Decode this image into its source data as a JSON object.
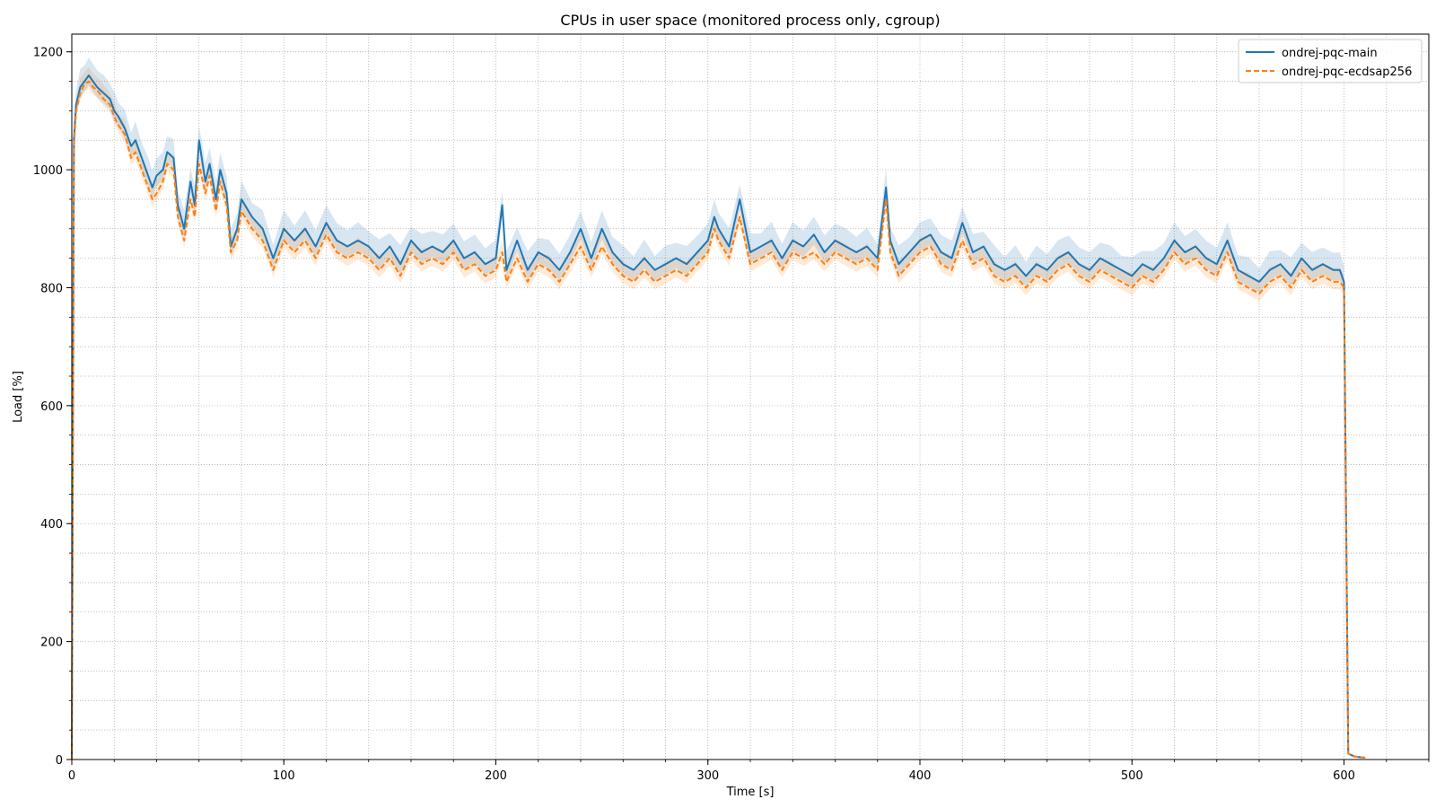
{
  "chart_data": {
    "type": "line",
    "title": "CPUs in user space (monitored process only, cgroup)",
    "xlabel": "Time [s]",
    "ylabel": "Load [%]",
    "xlim": [
      0,
      640
    ],
    "ylim": [
      0,
      1230
    ],
    "x_ticks": [
      0,
      100,
      200,
      300,
      400,
      500,
      600
    ],
    "y_ticks": [
      0,
      200,
      400,
      600,
      800,
      1000,
      1200
    ],
    "x_tick_labels": [
      "0",
      "100",
      "200",
      "300",
      "400",
      "500",
      "600"
    ],
    "y_tick_labels": [
      "0",
      "200",
      "400",
      "600",
      "800",
      "1000",
      "1200"
    ],
    "grid": true,
    "minor_grid": true,
    "legend_position": "top-right",
    "series": [
      {
        "name": "ondrej-pqc-main",
        "color": "#1f77b4",
        "style": "solid",
        "x": [
          0,
          1,
          2,
          4,
          6,
          8,
          10,
          12,
          15,
          18,
          20,
          22,
          25,
          28,
          30,
          33,
          36,
          38,
          40,
          43,
          45,
          48,
          50,
          53,
          56,
          58,
          60,
          63,
          65,
          68,
          70,
          73,
          75,
          78,
          80,
          85,
          90,
          95,
          100,
          105,
          110,
          115,
          120,
          125,
          130,
          135,
          140,
          145,
          150,
          155,
          160,
          165,
          170,
          175,
          180,
          185,
          190,
          195,
          200,
          203,
          205,
          210,
          215,
          220,
          225,
          230,
          235,
          240,
          245,
          250,
          255,
          260,
          265,
          270,
          275,
          280,
          285,
          290,
          295,
          300,
          303,
          305,
          310,
          315,
          320,
          325,
          330,
          335,
          340,
          345,
          350,
          355,
          360,
          365,
          370,
          375,
          380,
          384,
          386,
          390,
          395,
          400,
          405,
          410,
          415,
          420,
          425,
          430,
          435,
          440,
          445,
          450,
          455,
          460,
          465,
          470,
          475,
          480,
          485,
          490,
          495,
          500,
          505,
          510,
          515,
          520,
          525,
          530,
          535,
          540,
          545,
          550,
          555,
          560,
          565,
          570,
          575,
          580,
          585,
          590,
          595,
          598,
          600,
          602,
          605,
          610
        ],
        "values": [
          0,
          1050,
          1110,
          1140,
          1150,
          1160,
          1150,
          1140,
          1130,
          1120,
          1100,
          1090,
          1070,
          1040,
          1050,
          1020,
          990,
          970,
          990,
          1000,
          1030,
          1020,
          940,
          900,
          980,
          940,
          1050,
          980,
          1010,
          950,
          1000,
          960,
          870,
          900,
          950,
          920,
          900,
          850,
          900,
          880,
          900,
          870,
          910,
          880,
          870,
          880,
          870,
          850,
          870,
          840,
          880,
          860,
          870,
          860,
          880,
          850,
          860,
          840,
          850,
          940,
          830,
          880,
          830,
          860,
          850,
          830,
          860,
          900,
          850,
          900,
          860,
          840,
          830,
          850,
          830,
          840,
          850,
          840,
          860,
          880,
          920,
          900,
          870,
          950,
          860,
          870,
          880,
          850,
          880,
          870,
          890,
          860,
          880,
          870,
          860,
          870,
          850,
          970,
          880,
          840,
          860,
          880,
          890,
          860,
          850,
          910,
          860,
          870,
          840,
          830,
          840,
          820,
          840,
          830,
          850,
          860,
          840,
          830,
          850,
          840,
          830,
          820,
          840,
          830,
          850,
          880,
          860,
          870,
          850,
          840,
          880,
          830,
          820,
          810,
          830,
          840,
          820,
          850,
          830,
          840,
          830,
          830,
          810,
          10,
          5,
          3
        ]
      },
      {
        "name": "ondrej-pqc-ecdsap256",
        "color": "#ff7f0e",
        "style": "dashed",
        "x": [
          0,
          1,
          2,
          4,
          6,
          8,
          10,
          12,
          15,
          18,
          20,
          22,
          25,
          28,
          30,
          33,
          36,
          38,
          40,
          43,
          45,
          48,
          50,
          53,
          56,
          58,
          60,
          63,
          65,
          68,
          70,
          73,
          75,
          78,
          80,
          85,
          90,
          95,
          100,
          105,
          110,
          115,
          120,
          125,
          130,
          135,
          140,
          145,
          150,
          155,
          160,
          165,
          170,
          175,
          180,
          185,
          190,
          195,
          200,
          203,
          205,
          210,
          215,
          220,
          225,
          230,
          235,
          240,
          245,
          250,
          255,
          260,
          265,
          270,
          275,
          280,
          285,
          290,
          295,
          300,
          303,
          305,
          310,
          315,
          320,
          325,
          330,
          335,
          340,
          345,
          350,
          355,
          360,
          365,
          370,
          375,
          380,
          384,
          386,
          390,
          395,
          400,
          405,
          410,
          415,
          420,
          425,
          430,
          435,
          440,
          445,
          450,
          455,
          460,
          465,
          470,
          475,
          480,
          485,
          490,
          495,
          500,
          505,
          510,
          515,
          520,
          525,
          530,
          535,
          540,
          545,
          550,
          555,
          560,
          565,
          570,
          575,
          580,
          585,
          590,
          595,
          598,
          600,
          602,
          605,
          610
        ],
        "values": [
          0,
          1040,
          1100,
          1130,
          1145,
          1150,
          1140,
          1135,
          1120,
          1110,
          1090,
          1075,
          1060,
          1020,
          1030,
          1000,
          970,
          950,
          960,
          980,
          1010,
          1000,
          920,
          880,
          950,
          920,
          1010,
          960,
          990,
          930,
          980,
          940,
          860,
          880,
          930,
          900,
          880,
          830,
          880,
          860,
          880,
          850,
          890,
          860,
          850,
          860,
          850,
          830,
          850,
          820,
          860,
          840,
          850,
          840,
          860,
          830,
          840,
          820,
          830,
          860,
          810,
          850,
          810,
          840,
          830,
          810,
          840,
          870,
          830,
          870,
          840,
          820,
          810,
          830,
          810,
          820,
          830,
          820,
          840,
          860,
          900,
          880,
          850,
          920,
          840,
          850,
          860,
          830,
          860,
          850,
          860,
          840,
          860,
          850,
          840,
          850,
          830,
          950,
          860,
          820,
          840,
          860,
          870,
          840,
          830,
          880,
          840,
          850,
          820,
          810,
          820,
          800,
          820,
          810,
          830,
          840,
          820,
          810,
          830,
          820,
          810,
          800,
          820,
          810,
          830,
          860,
          840,
          850,
          830,
          820,
          860,
          810,
          800,
          790,
          810,
          820,
          800,
          830,
          810,
          820,
          810,
          810,
          800,
          10,
          5,
          3
        ]
      }
    ]
  }
}
